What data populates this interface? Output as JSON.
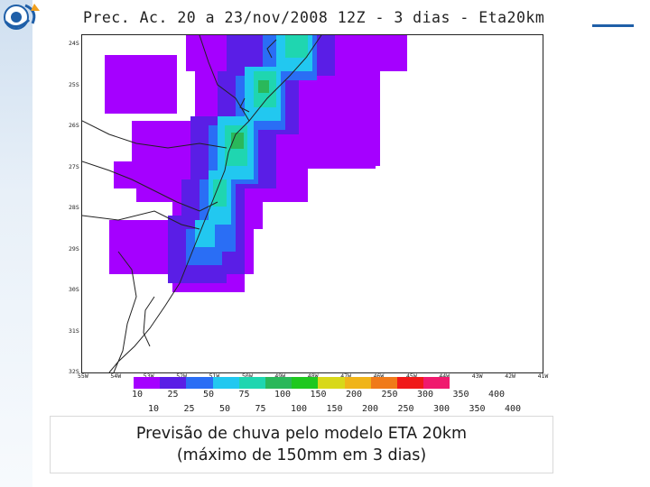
{
  "map_title": "Prec. Ac. 20 a 23/nov/2008 12Z - 3 dias - Eta20km",
  "latitude_labels": [
    "24S",
    "25S",
    "26S",
    "27S",
    "28S",
    "29S",
    "30S",
    "31S",
    "32S"
  ],
  "longitude_labels": [
    "55W",
    "54W",
    "53W",
    "52W",
    "51W",
    "50W",
    "49W",
    "48W",
    "47W",
    "46W",
    "45W",
    "44W",
    "43W",
    "42W",
    "41W"
  ],
  "colorbar": {
    "colors": [
      "#a500ff",
      "#5a1ee6",
      "#2a6ef5",
      "#22c8f0",
      "#1fd6b0",
      "#2ab85a",
      "#1fc81f",
      "#d8d81a",
      "#f0b41a",
      "#f07a1a",
      "#f01a1a",
      "#f01a6e"
    ],
    "labels_top": [
      "10",
      "25",
      "50",
      "75",
      "100",
      "150",
      "200",
      "250",
      "300",
      "350",
      "400"
    ],
    "labels_bottom": [
      "10",
      "25",
      "50",
      "75",
      "100",
      "150",
      "200",
      "250",
      "300",
      "350",
      "400"
    ]
  },
  "caption": {
    "line1": "Previsão de chuva pelo modelo ETA 20km",
    "line2": "(máximo de 150mm em 3 dias)"
  }
}
